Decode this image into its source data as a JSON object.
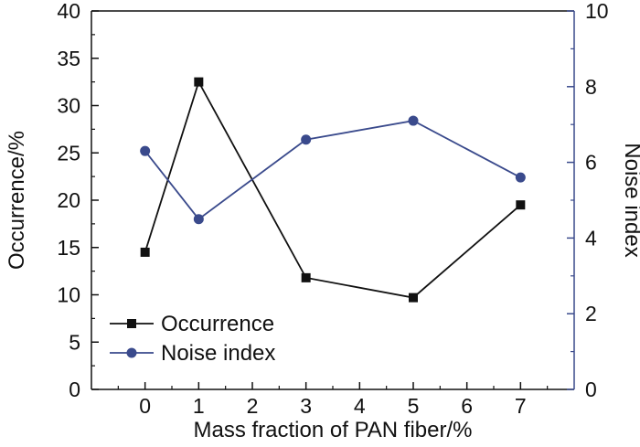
{
  "chart_data": {
    "type": "line",
    "title": "",
    "x": [
      0,
      1,
      3,
      5,
      7
    ],
    "xlabel": "Mass fraction of PAN fiber/%",
    "xlim": [
      -1,
      8
    ],
    "xticks": [
      0,
      1,
      2,
      3,
      4,
      5,
      6,
      7
    ],
    "ylabel": "Occurrence/%",
    "ylim": [
      0,
      40
    ],
    "yticks": [
      0,
      5,
      10,
      15,
      20,
      25,
      30,
      35,
      40
    ],
    "y2label": "Noise index",
    "y2lim": [
      0,
      10
    ],
    "y2ticks": [
      0,
      2,
      4,
      6,
      8,
      10
    ],
    "grid": false,
    "legend_position": "bottom-left",
    "series": [
      {
        "name": "Occurrence",
        "axis": "left",
        "marker": "square",
        "color": "#111111",
        "values": [
          14.5,
          32.5,
          11.8,
          9.7,
          19.5
        ]
      },
      {
        "name": "Noise index",
        "axis": "right",
        "marker": "circle",
        "color": "#3a4a8c",
        "values": [
          6.3,
          4.5,
          6.6,
          7.1,
          5.6
        ]
      }
    ]
  }
}
